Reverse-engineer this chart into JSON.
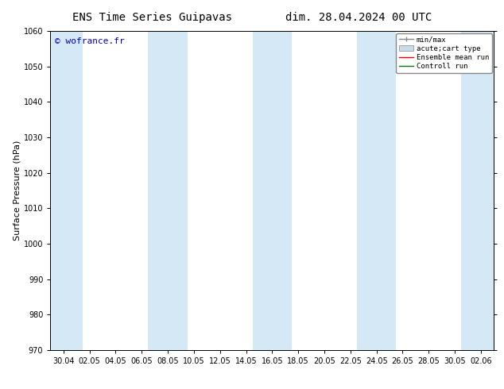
{
  "title_left": "ENS Time Series Guipavas",
  "title_right": "dim. 28.04.2024 00 UTC",
  "ylabel": "Surface Pressure (hPa)",
  "ylim": [
    970,
    1060
  ],
  "yticks": [
    970,
    980,
    990,
    1000,
    1010,
    1020,
    1030,
    1040,
    1050,
    1060
  ],
  "xtick_labels": [
    "30.04",
    "02.05",
    "04.05",
    "06.05",
    "08.05",
    "10.05",
    "12.05",
    "14.05",
    "16.05",
    "18.05",
    "20.05",
    "22.05",
    "24.05",
    "26.05",
    "28.05",
    "30.05",
    "02.06"
  ],
  "watermark": "© wofrance.fr",
  "watermark_color": "#0000cc",
  "bg_color": "#ffffff",
  "plot_bg_color": "#ffffff",
  "shaded_color": "#d4e8f5",
  "legend_entries": [
    "min/max",
    "acute;cart type",
    "Ensemble mean run",
    "Controll run"
  ],
  "legend_colors_line": [
    "#888888",
    "#bbccdd",
    "#ff0000",
    "#008000"
  ],
  "title_fontsize": 10,
  "tick_fontsize": 7,
  "label_fontsize": 8,
  "watermark_fontsize": 8
}
